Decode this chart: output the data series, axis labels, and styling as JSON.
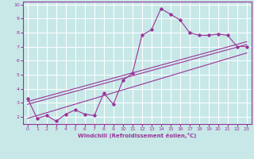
{
  "xlabel": "Windchill (Refroidissement éolien,°C)",
  "background_color": "#c8e8e8",
  "grid_color": "#ffffff",
  "line_color": "#993399",
  "xlim": [
    -0.5,
    23.5
  ],
  "ylim": [
    1.5,
    10.2
  ],
  "xticks": [
    0,
    1,
    2,
    3,
    4,
    5,
    6,
    7,
    8,
    9,
    10,
    11,
    12,
    13,
    14,
    15,
    16,
    17,
    18,
    19,
    20,
    21,
    22,
    23
  ],
  "yticks": [
    2,
    3,
    4,
    5,
    6,
    7,
    8,
    9,
    10
  ],
  "main_x": [
    0,
    1,
    2,
    3,
    4,
    5,
    6,
    7,
    8,
    9,
    10,
    11,
    12,
    13,
    14,
    15,
    16,
    17,
    18,
    19,
    20,
    21,
    22,
    23
  ],
  "main_y": [
    3.3,
    1.9,
    2.1,
    1.7,
    2.2,
    2.5,
    2.2,
    2.1,
    3.7,
    2.9,
    4.6,
    5.1,
    7.8,
    8.2,
    9.7,
    9.3,
    8.9,
    8.0,
    7.8,
    7.8,
    7.9,
    7.8,
    7.0,
    7.0
  ],
  "ref_lines": [
    {
      "x0": 0,
      "y0": 3.1,
      "x1": 23,
      "y1": 7.35
    },
    {
      "x0": 0,
      "y0": 2.9,
      "x1": 23,
      "y1": 7.15
    },
    {
      "x0": 0,
      "y0": 1.9,
      "x1": 23,
      "y1": 6.55
    }
  ]
}
